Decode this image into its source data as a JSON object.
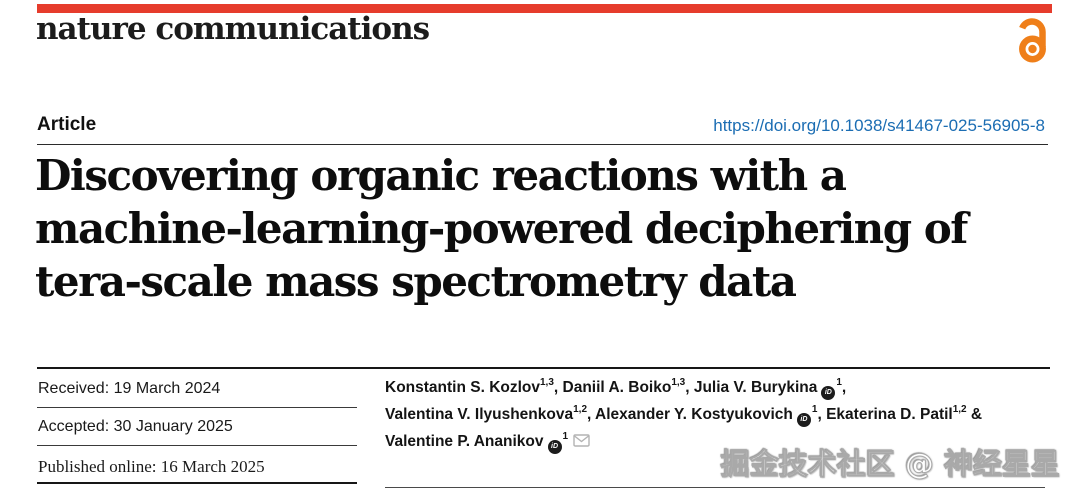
{
  "journal": {
    "wordmark": "nature communications"
  },
  "colors": {
    "brand_red": "#e63c2c",
    "open_access_orange": "#ef7f1a",
    "link_blue": "#1b6db3",
    "text_black": "#141414"
  },
  "header": {
    "article_label": "Article",
    "doi": "https://doi.org/10.1038/s41467-025-56905-8"
  },
  "title": {
    "lines": [
      "Discovering organic reactions with a",
      "machine-learning-powered deciphering of",
      "tera-scale mass spectrometry data"
    ]
  },
  "dates": {
    "received": "Received: 19 March 2024",
    "accepted": "Accepted: 30 January 2025",
    "published": "Published online: 16 March 2025"
  },
  "authors": {
    "lines": [
      [
        {
          "t": "text",
          "v": "Konstantin S. Kozlov"
        },
        {
          "t": "sup",
          "v": "1,3"
        },
        {
          "t": "text",
          "v": ", Daniil A. Boiko"
        },
        {
          "t": "sup",
          "v": "1,3"
        },
        {
          "t": "text",
          "v": ", Julia V. Burykina"
        },
        {
          "t": "orcid"
        },
        {
          "t": "sup",
          "v": "1"
        },
        {
          "t": "text",
          "v": ","
        }
      ],
      [
        {
          "t": "text",
          "v": "Valentina V. Ilyushenkova"
        },
        {
          "t": "sup",
          "v": "1,2"
        },
        {
          "t": "text",
          "v": ", Alexander Y. Kostyukovich"
        },
        {
          "t": "orcid"
        },
        {
          "t": "sup",
          "v": "1"
        },
        {
          "t": "text",
          "v": ", Ekaterina D. Patil"
        },
        {
          "t": "sup",
          "v": "1,2"
        },
        {
          "t": "text",
          "v": " &"
        }
      ],
      [
        {
          "t": "text",
          "v": "Valentine P. Ananikov"
        },
        {
          "t": "orcid"
        },
        {
          "t": "sup",
          "v": "1"
        },
        {
          "t": "mail"
        }
      ]
    ]
  },
  "icons": {
    "open_access": "open-access-padlock",
    "orcid": "orcid-id-badge",
    "orcid_glyph": "iD",
    "mail": "envelope"
  },
  "watermark": {
    "text": "掘金技术社区 @ 神经星星"
  }
}
